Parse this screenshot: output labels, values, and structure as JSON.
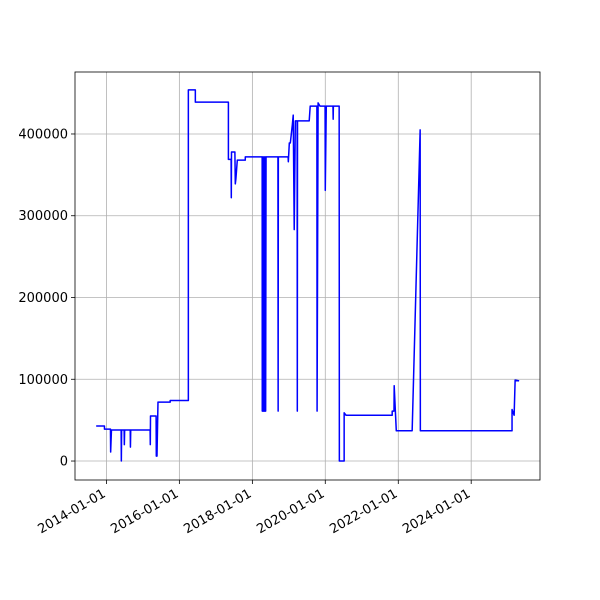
{
  "chart_data": {
    "type": "line",
    "color": "#0000ff",
    "grid": true,
    "xlim": [
      "2013-02-20",
      "2025-11-20"
    ],
    "xticks": [
      "2014-01-01",
      "2016-01-01",
      "2018-01-01",
      "2020-01-01",
      "2022-01-01",
      "2024-01-01"
    ],
    "ylim": [
      -23200,
      475800
    ],
    "yticks": [
      0,
      100000,
      200000,
      300000,
      400000
    ],
    "x": [
      "2013-09-20",
      "2013-12-12",
      "2013-12-12",
      "2014-02-10",
      "2014-02-12",
      "2014-02-20",
      "2014-05-28",
      "2014-05-30",
      "2014-06-02",
      "2014-06-27",
      "2014-06-29",
      "2014-07-02",
      "2014-08-27",
      "2014-08-29",
      "2014-09-01",
      "2015-03-14",
      "2015-03-16",
      "2015-03-18",
      "2015-05-13",
      "2015-05-15",
      "2015-05-22",
      "2015-06-01",
      "2015-10-01",
      "2015-10-01",
      "2016-03-31",
      "2016-03-31",
      "2016-06-09",
      "2016-06-09",
      "2017-05-06",
      "2017-05-06",
      "2017-06-02",
      "2017-06-04",
      "2017-06-06",
      "2017-07-10",
      "2017-07-14",
      "2017-07-20",
      "2017-08-03",
      "2017-10-22",
      "2017-10-22",
      "2018-04-09",
      "2018-04-10",
      "2018-04-14",
      "2018-04-18",
      "2018-04-22",
      "2018-04-26",
      "2018-05-02",
      "2018-05-06",
      "2018-05-10",
      "2018-05-14",
      "2018-05-18",
      "2018-09-14",
      "2018-09-16",
      "2018-09-18",
      "2018-12-25",
      "2018-12-27",
      "2019-01-06",
      "2019-01-16",
      "2019-02-05",
      "2019-02-14",
      "2019-02-24",
      "2019-03-07",
      "2019-03-25",
      "2019-03-27",
      "2019-03-29",
      "2019-07-24",
      "2019-08-03",
      "2019-10-09",
      "2019-10-11",
      "2019-10-21",
      "2019-11-09",
      "2019-12-30",
      "2020-01-01",
      "2020-01-11",
      "2020-03-18",
      "2020-03-20",
      "2020-03-22",
      "2020-05-19",
      "2020-05-21",
      "2020-07-08",
      "2020-07-08",
      "2020-07-27",
      "2021-11-01",
      "2021-11-01",
      "2021-11-19",
      "2021-11-21",
      "2021-12-12",
      "2022-05-20",
      "2022-08-08",
      "2022-08-10",
      "2025-02-13",
      "2025-02-13",
      "2025-03-06",
      "2025-03-16",
      "2025-04-25"
    ],
    "values": [
      42800,
      42800,
      39000,
      39000,
      11000,
      38000,
      38000,
      0,
      38000,
      38000,
      20000,
      38000,
      38000,
      17000,
      38000,
      38000,
      20000,
      55000,
      55000,
      6000,
      6000,
      72000,
      72000,
      74000,
      74000,
      454000,
      454000,
      439000,
      439000,
      369000,
      369000,
      322000,
      378000,
      378000,
      339000,
      345000,
      368000,
      368000,
      372000,
      372000,
      61000,
      372000,
      61000,
      372000,
      61000,
      372000,
      61000,
      372000,
      61000,
      372000,
      372000,
      61000,
      372000,
      372000,
      366000,
      389000,
      389000,
      411000,
      423000,
      283000,
      416000,
      416000,
      61000,
      416000,
      416000,
      434000,
      434000,
      61000,
      438000,
      434000,
      434000,
      331000,
      434000,
      434000,
      418000,
      434000,
      434000,
      0,
      0,
      59000,
      56000,
      56000,
      61000,
      61000,
      92000,
      37000,
      37000,
      405000,
      37000,
      37000,
      63000,
      56000,
      99000,
      98000
    ]
  }
}
